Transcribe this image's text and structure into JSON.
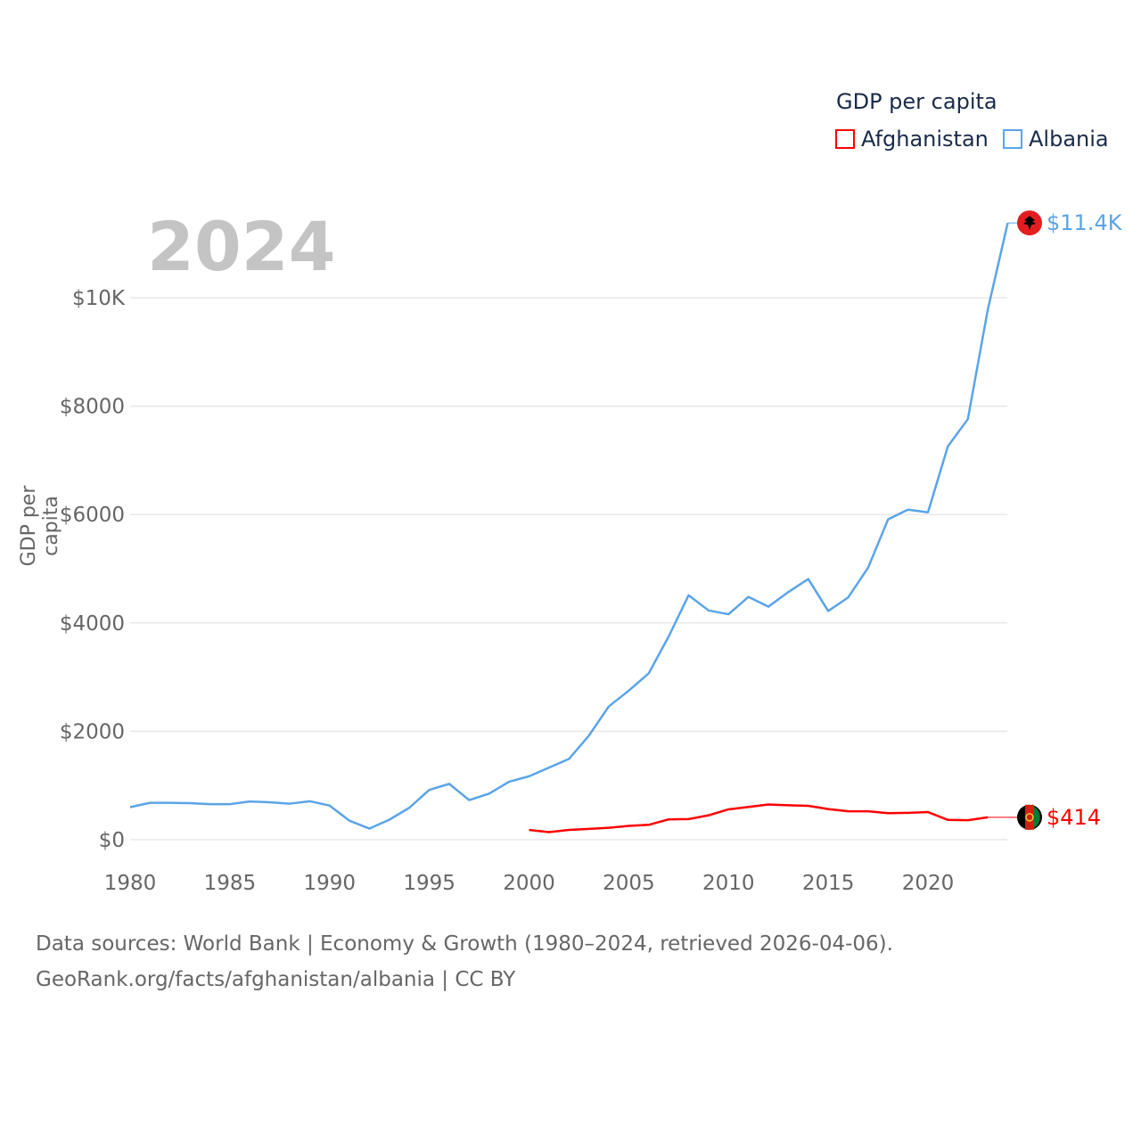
{
  "chart_data": {
    "type": "line",
    "title": "GDP per capita",
    "year_label": "2024",
    "ylabel": "GDP per capita",
    "xlabel": "",
    "xlim": [
      1980,
      2024
    ],
    "ylim": [
      0,
      11400
    ],
    "yticks": [
      0,
      2000,
      4000,
      6000,
      8000,
      10000
    ],
    "ytick_labels": [
      "$0",
      "$2000",
      "$4000",
      "$6000",
      "$8000",
      "$10K"
    ],
    "xticks": [
      1980,
      1985,
      1990,
      1995,
      2000,
      2005,
      2010,
      2015,
      2020
    ],
    "xtick_labels": [
      "1980",
      "1985",
      "1990",
      "1995",
      "2000",
      "2005",
      "2010",
      "2015",
      "2020"
    ],
    "grid": true,
    "legend_position": "top-right",
    "series": [
      {
        "name": "Afghanistan",
        "color": "#ff0000",
        "end_label": "$414",
        "x": [
          2000,
          2001,
          2002,
          2003,
          2004,
          2005,
          2006,
          2007,
          2008,
          2009,
          2010,
          2011,
          2012,
          2013,
          2014,
          2015,
          2016,
          2017,
          2018,
          2019,
          2020,
          2021,
          2022,
          2023
        ],
        "values": [
          180,
          140,
          180,
          200,
          220,
          255,
          275,
          375,
          380,
          450,
          560,
          605,
          650,
          635,
          625,
          565,
          525,
          525,
          490,
          495,
          510,
          365,
          360,
          414
        ]
      },
      {
        "name": "Albania",
        "color": "#5ba4e8",
        "end_label": "$11.4K",
        "x": [
          1980,
          1981,
          1982,
          1983,
          1984,
          1985,
          1986,
          1987,
          1988,
          1989,
          1990,
          1991,
          1992,
          1993,
          1994,
          1995,
          1996,
          1997,
          1998,
          1999,
          2000,
          2001,
          2002,
          2003,
          2004,
          2005,
          2006,
          2007,
          2008,
          2009,
          2010,
          2011,
          2012,
          2013,
          2014,
          2015,
          2016,
          2017,
          2018,
          2019,
          2020,
          2021,
          2022,
          2023,
          2024
        ],
        "values": [
          600,
          680,
          680,
          675,
          655,
          655,
          705,
          690,
          665,
          710,
          630,
          350,
          205,
          370,
          590,
          920,
          1030,
          730,
          850,
          1070,
          1170,
          1330,
          1490,
          1920,
          2460,
          2750,
          3070,
          3750,
          4510,
          4230,
          4160,
          4480,
          4300,
          4570,
          4810,
          4220,
          4470,
          5020,
          5910,
          6090,
          6040,
          7260,
          7760,
          9780,
          11380
        ]
      }
    ]
  },
  "footer": {
    "line1": "Data sources: World Bank | Economy & Growth (1980–2024, retrieved 2026-04-06).",
    "line2": "GeoRank.org/facts/afghanistan/albania | CC BY"
  }
}
